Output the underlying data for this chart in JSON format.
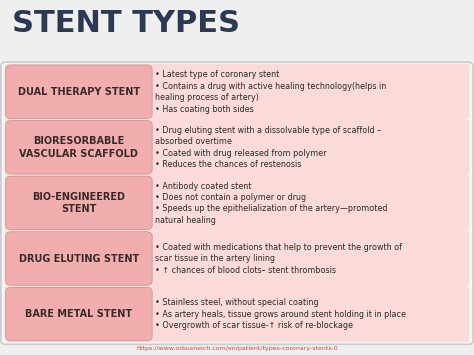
{
  "title": "STENT TYPES",
  "title_color": "#2B3A52",
  "bg_color": "#EFEFEF",
  "content_bg": "#F5F5F5",
  "content_border": "#CCCCCC",
  "label_box_color": "#F2AEAE",
  "row_bg_color": "#FBDADA",
  "label_text_color": "#3A2A2A",
  "bullet_text_color": "#2A2A2A",
  "footer_color": "#CC4444",
  "footer": "https://www.orbusneich.com/en/patient/types-coronary-stents-0",
  "rows": [
    {
      "label": "DUAL THERAPY STENT",
      "bullets": [
        "Latest type of coronary stent",
        "Contains a drug with active healing technology(helps in\nhealing process of artery)",
        "Has coating both sides"
      ]
    },
    {
      "label": "BIORESORBABLE\nVASCULAR SCAFFOLD",
      "bullets": [
        "Drug eluting stent with a dissolvable type of scaffold –\nabsorbed overtime",
        "Coated with drug released from polymer",
        "Reduces the chances of restenosis"
      ]
    },
    {
      "label": "BIO-ENGINEERED\nSTENT",
      "bullets": [
        "Antibody coated stent",
        "Does not contain a polymer or drug",
        "Speeds up the epithelialization of the artery—promoted\nnatural healing"
      ]
    },
    {
      "label": "DRUG ELUTING STENT",
      "bullets": [
        "Coated with medications that help to prevent the growth of\nscar tissue in the artery lining",
        "↑ chances of blood clots– stent thrombosis"
      ]
    },
    {
      "label": "BARE METAL STENT",
      "bullets": [
        "Stainless steel, without special coating",
        "As artery heals, tissue grows around stent holding it in place",
        "Overgrowth of scar tissue-↑ risk of re-blockage"
      ]
    }
  ]
}
